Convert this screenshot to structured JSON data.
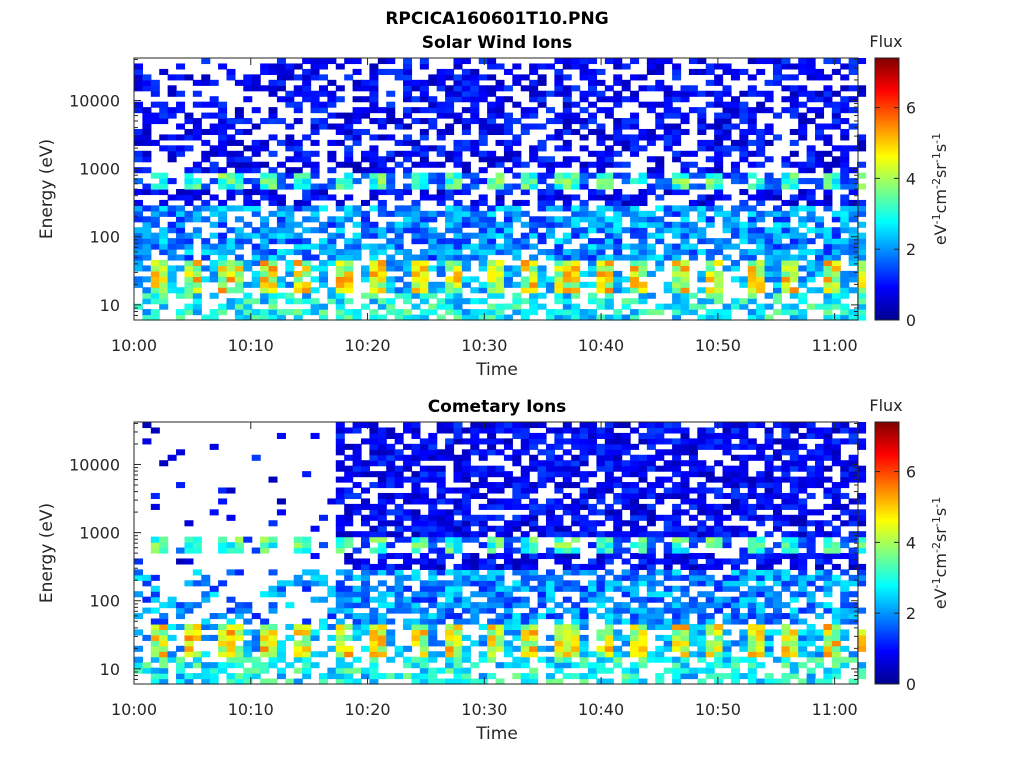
{
  "figure": {
    "title": "RPCICA160601T10.PNG"
  },
  "chart_data": [
    {
      "type": "heatmap",
      "title": "Solar Wind Ions",
      "xlabel": "Time",
      "ylabel": "Energy (eV)",
      "xlim": [
        "10:00",
        "11:02"
      ],
      "ylim": [
        6,
        42000
      ],
      "y_scale": "log",
      "x_ticks": [
        "10:00",
        "10:10",
        "10:20",
        "10:30",
        "10:40",
        "10:50",
        "11:00"
      ],
      "y_ticks": [
        "10",
        "100",
        "1000",
        "10000"
      ],
      "colorbar": {
        "title": "Flux",
        "label": "eV-1cm-2sr-1s-1",
        "range": [
          0,
          7.4
        ],
        "ticks": [
          "0",
          "2",
          "4",
          "6"
        ],
        "colormap": "jet"
      },
      "grid": false,
      "background_color": "#ffffff",
      "sparse_start_minute": 0
    },
    {
      "type": "heatmap",
      "title": "Cometary Ions",
      "xlabel": "Time",
      "ylabel": "Energy (eV)",
      "xlim": [
        "10:00",
        "11:02"
      ],
      "ylim": [
        6,
        42000
      ],
      "y_scale": "log",
      "x_ticks": [
        "10:00",
        "10:10",
        "10:20",
        "10:30",
        "10:40",
        "10:50",
        "11:00"
      ],
      "y_ticks": [
        "10",
        "100",
        "1000",
        "10000"
      ],
      "colorbar": {
        "title": "Flux",
        "label": "eV-1cm-2sr-1s-1",
        "range": [
          0,
          7.4
        ],
        "ticks": [
          "0",
          "2",
          "4",
          "6"
        ],
        "colormap": "jet"
      },
      "grid": false,
      "background_color": "#ffffff",
      "sparse_until": "10:17"
    }
  ]
}
